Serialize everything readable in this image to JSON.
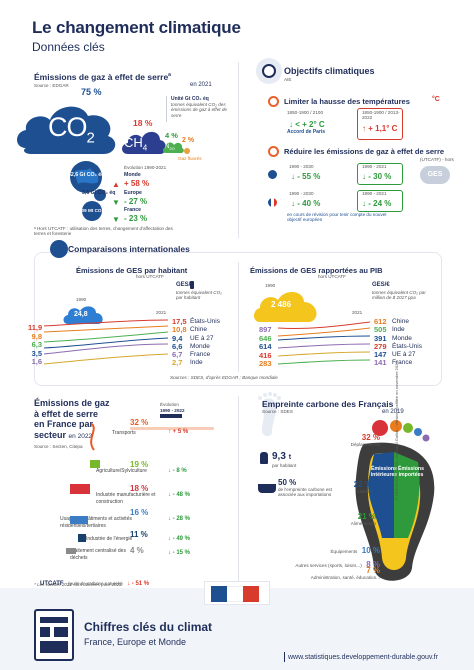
{
  "header": {
    "title": "Le changement climatique",
    "subtitle": "Données clés"
  },
  "emissions": {
    "title": "Émissions de gaz à effet de serre",
    "title_sup": "a",
    "year": "en 2021",
    "source": "Source : EDGAR",
    "co2_pct": "75 %",
    "ch4_pct": "18 %",
    "n2o_pct": "4 %",
    "fgas_pct": "2 %",
    "co2_label": "CO",
    "co2_sub": "2",
    "ch4_label": "CH",
    "ch4_sub": "4",
    "n2o_label": "N",
    "n2o_sub": "2O",
    "fgas_label": "Gaz fluorés",
    "unit_title": "Unité Gt CO₂ éq",
    "unit_text": "tonnes équivalent CO₂ des émissions de gaz à effet de serre",
    "evolution_label": "Évolution 1990-2021",
    "world_value": "52,6 Gt CO₂ éq",
    "world_label": "Monde",
    "world_change": "+ 58 %",
    "europe_value": "3,6 Gt CO₂ éq",
    "europe_label": "Europe",
    "europe_change": "- 27 %",
    "france_value": "409 Mt CO₂ éq",
    "france_label": "France",
    "france_change": "- 23 %",
    "note": "ᵃ Hors UTCATF : utilisation des terres, changement d'affectation des terres et foresterie"
  },
  "objectives": {
    "title": "Objectifs climatiques",
    "subtitle": "AIE",
    "temp_title": "Limiter la hausse des températures",
    "temp_col1_label": "1850-1900 / 2100",
    "temp_col1_value": "< + 2° C",
    "temp_col1_caption": "Accord de Paris",
    "temp_col2_label": "1850-1900 / 2013-2022",
    "temp_col2_value": "+ 1,1° C",
    "temp_icon_label": "°C",
    "ges_title": "Réduire les émissions de gaz à effet de serre",
    "ges_hors": "(UTCATF) - hors",
    "eu_col1_label": "1990 - 2030",
    "eu_col1_value": "- 55 %",
    "eu_col2_label": "1990 - 2021",
    "eu_col2_value": "- 30 %",
    "fr_col1_label": "1990 - 2030",
    "fr_col1_value": "- 40 %",
    "fr_col2_label": "1990 - 2021",
    "fr_col2_value": "- 24 %",
    "ges_badge": "GES",
    "revision_note": "en cours de révision pour tenir compte du nouvel objectif européen"
  },
  "comparisons": {
    "title": "Comparaisons internationales",
    "left_title": "Émissions de GES par habitant",
    "left_subtitle": "hors UTCATF",
    "left_legend_title": "GES/",
    "left_legend_text": "tonnes équivalent CO₂ par habitant",
    "left_year_start": "1990",
    "left_year_end": "2021",
    "left_cloud_value": "24,8",
    "left_values_1990": [
      "11,9",
      "9,8",
      "6,3",
      "3,5",
      "1,6"
    ],
    "left_values_2021": [
      "17,5",
      "10,8",
      "9,4",
      "6,6",
      "6,7"
    ],
    "left_values_mid": [
      "",
      "",
      "",
      "",
      ""
    ],
    "left_countries": [
      "États-Unis",
      "Chine",
      "UE à 27",
      "Monde",
      "France",
      "Inde"
    ],
    "left_values_right": [
      "17,5",
      "10,8",
      "9,4",
      "6,6",
      "6,7",
      "2,7"
    ],
    "right_title": "Émissions de GES rapportées au PIB",
    "right_subtitle": "hors UTCATF",
    "right_legend_title": "GES/€",
    "right_legend_text": "tonnes équivalent CO₂ par million de $ 2017 ppa",
    "right_year_start": "1990",
    "right_year_end": "2021",
    "right_cloud_value": "2 486",
    "right_values_1990": [
      "897",
      "646",
      "614",
      "416",
      "283"
    ],
    "right_countries": [
      "Chine",
      "Inde",
      "Monde",
      "États-Unis",
      "UE à 27",
      "France"
    ],
    "right_values_right": [
      "612",
      "505",
      "391",
      "279",
      "147",
      "141"
    ],
    "source": "Sources : SDES, d'après EDGAR ; Banque mondiale"
  },
  "sectors": {
    "title_line1": "Émissions de gaz",
    "title_line2": "à effet de serre",
    "title_line3": "en France par",
    "title_line4": "secteur",
    "year": "en 2022",
    "source": "Source : Secten, Citepa",
    "evolution_label": "Évolution",
    "evolution_range": "1990 - 2022",
    "rows": [
      {
        "pct": "32 %",
        "label": "Transports",
        "change": "+ 5 %",
        "color": "#e85a22"
      },
      {
        "pct": "19 %",
        "label": "Agriculture/Sylviculture",
        "change": "- 8 %",
        "color": "#76b82a"
      },
      {
        "pct": "18 %",
        "label": "Industrie manufacturière et construction",
        "change": "- 48 %",
        "color": "#d8333b"
      },
      {
        "pct": "16 %",
        "label": "Usage des bâtiments et activités résidentiels/tertiaires",
        "change": "- 28 %",
        "color": "#3a7dc5"
      },
      {
        "pct": "11 %",
        "label": "Industrie de l'énergie",
        "change": "- 49 %",
        "color": "#16406d"
      },
      {
        "pct": "4 %",
        "label": "Traitement centralisé des déchets",
        "change": "- 15 %",
        "color": "#8a8a8a"
      }
    ],
    "utcatf_label": "UTCATF",
    "utcatf_value": "(puits de carbone naturels)",
    "utcatf_change": "- 51 %",
    "note": "* Les valeurs 2021 sont utilisées pour 2022"
  },
  "footprint": {
    "title": "Empreinte carbone des Français",
    "year": "en 2019",
    "source": "Source : SDES",
    "per_capita_value": "9,3",
    "per_capita_unit": "t",
    "per_capita_label": "par habitant",
    "imports_pct": "50 %",
    "imports_text": "de l'empreinte carbone est associée aux importations",
    "interior_label": "Émissions intérieures",
    "imported_label": "Émissions importées",
    "rows": [
      {
        "pct": "32 %",
        "label": "Déplacements"
      },
      {
        "pct": "22 %",
        "label": "Habitat"
      },
      {
        "pct": "21 %",
        "label": "Alimentation"
      },
      {
        "pct": "10 %",
        "label": "Équipements"
      },
      {
        "pct": "8 %",
        "label": "Autres services (sports, loisirs...)"
      },
      {
        "pct": "7 %",
        "label": "Administration, santé, éducation..."
      }
    ],
    "side_credit": "© SDES/CGDD 2023 – Bertrand Galliot – Version modifiée en novembre 2023"
  },
  "footer": {
    "title": "Chiffres clés du climat",
    "subtitle": "France, Europe et Monde",
    "url": "www.statistiques.developpement-durable.gouv.fr"
  },
  "colors": {
    "navy": "#1f2d5a",
    "green": "#2e9a3c",
    "red": "#d83a2c",
    "orange": "#e87c1e",
    "cloud_blue": "#1d4f91",
    "ch4_purple": "#2c3e8f",
    "n2o_green": "#4caf50",
    "footer_bg": "#f1f4f9"
  }
}
